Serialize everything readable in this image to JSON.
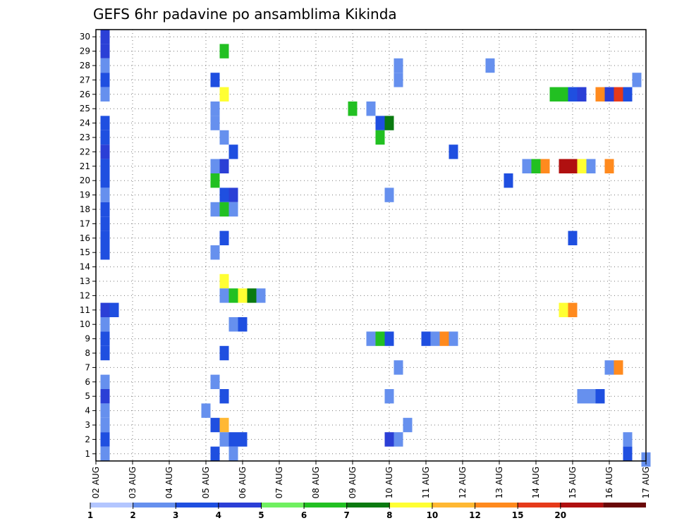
{
  "chart_data": {
    "type": "heatmap",
    "title": "GEFS 6hr padavine po ansamblima Kikinda",
    "x_tick_labels": [
      "02 AUG",
      "03 AUG",
      "04 AUG",
      "05 AUG",
      "06 AUG",
      "07 AUG",
      "08 AUG",
      "09 AUG",
      "10 AUG",
      "11 AUG",
      "12 AUG",
      "13 AUG",
      "14 AUG",
      "15 AUG",
      "16 AUG",
      "17 AUG"
    ],
    "y_tick_labels": [
      "1",
      "2",
      "3",
      "4",
      "5",
      "6",
      "7",
      "8",
      "9",
      "10",
      "11",
      "12",
      "13",
      "14",
      "15",
      "16",
      "17",
      "18",
      "19",
      "20",
      "21",
      "22",
      "23",
      "24",
      "25",
      "26",
      "27",
      "28",
      "29",
      "30"
    ],
    "x_unit": "6-hour step from 02 AUG 00UTC",
    "xlim": [
      0,
      60
    ],
    "ylim": [
      0.5,
      30.5
    ],
    "grid": true,
    "legend_placement": "bottom",
    "color_scale": {
      "labels": [
        "1",
        "2",
        "3",
        "4",
        "5",
        "6",
        "7",
        "8",
        "10",
        "12",
        "15",
        "20"
      ],
      "colors": [
        "#b3c6ff",
        "#6690ee",
        "#1f4fe0",
        "#2b3fd6",
        "#70f060",
        "#22c022",
        "#0a7a10",
        "#ffff33",
        "#ffb833",
        "#ff8a1e",
        "#e63a1a",
        "#b01010",
        "#6a0808"
      ]
    },
    "cells": [
      [
        1,
        30,
        3
      ],
      [
        1,
        29,
        3
      ],
      [
        1,
        28,
        1
      ],
      [
        1,
        27,
        2
      ],
      [
        1,
        26,
        1
      ],
      [
        1,
        24,
        2
      ],
      [
        1,
        23,
        2
      ],
      [
        1,
        22,
        3
      ],
      [
        1,
        21,
        2
      ],
      [
        1,
        20,
        2
      ],
      [
        1,
        19,
        1
      ],
      [
        1,
        18,
        2
      ],
      [
        1,
        17,
        2
      ],
      [
        1,
        16,
        2
      ],
      [
        1,
        15,
        2
      ],
      [
        1,
        11,
        3
      ],
      [
        2,
        11,
        2
      ],
      [
        1,
        10,
        1
      ],
      [
        1,
        9,
        2
      ],
      [
        1,
        8,
        2
      ],
      [
        1,
        6,
        1
      ],
      [
        1,
        5,
        3
      ],
      [
        1,
        4,
        1
      ],
      [
        1,
        3,
        1
      ],
      [
        1,
        2,
        2
      ],
      [
        1,
        1,
        1
      ],
      [
        14,
        29,
        5
      ],
      [
        14,
        26,
        7
      ],
      [
        13,
        27,
        2
      ],
      [
        13,
        25,
        1
      ],
      [
        13,
        24,
        1
      ],
      [
        14,
        23,
        1
      ],
      [
        15,
        22,
        2
      ],
      [
        13,
        21,
        1
      ],
      [
        14,
        21,
        3
      ],
      [
        13,
        20,
        5
      ],
      [
        14,
        19,
        2
      ],
      [
        15,
        19,
        3
      ],
      [
        13,
        18,
        1
      ],
      [
        14,
        18,
        5
      ],
      [
        15,
        18,
        1
      ],
      [
        14,
        16,
        2
      ],
      [
        13,
        15,
        1
      ],
      [
        14,
        13,
        7
      ],
      [
        14,
        12,
        1
      ],
      [
        15,
        12,
        5
      ],
      [
        16,
        12,
        7
      ],
      [
        17,
        12,
        6
      ],
      [
        18,
        12,
        1
      ],
      [
        15,
        10,
        1
      ],
      [
        16,
        10,
        2
      ],
      [
        14,
        8,
        2
      ],
      [
        13,
        6,
        1
      ],
      [
        14,
        5,
        2
      ],
      [
        12,
        4,
        1
      ],
      [
        13,
        3,
        2
      ],
      [
        14,
        3,
        8
      ],
      [
        14,
        2,
        1
      ],
      [
        15,
        2,
        2
      ],
      [
        16,
        2,
        2
      ],
      [
        13,
        1,
        2
      ],
      [
        15,
        1,
        1
      ],
      [
        28,
        25,
        5
      ],
      [
        30,
        25,
        1
      ],
      [
        31,
        24,
        2
      ],
      [
        32,
        24,
        6
      ],
      [
        31,
        23,
        5
      ],
      [
        33,
        28,
        1
      ],
      [
        33,
        27,
        1
      ],
      [
        32,
        19,
        1
      ],
      [
        30,
        9,
        1
      ],
      [
        31,
        9,
        5
      ],
      [
        32,
        9,
        2
      ],
      [
        33,
        7,
        1
      ],
      [
        32,
        5,
        1
      ],
      [
        34,
        3,
        1
      ],
      [
        32,
        2,
        3
      ],
      [
        33,
        2,
        1
      ],
      [
        36,
        9,
        2
      ],
      [
        37,
        9,
        1
      ],
      [
        38,
        9,
        9
      ],
      [
        39,
        9,
        1
      ],
      [
        39,
        22,
        2
      ],
      [
        43,
        28,
        1
      ],
      [
        45,
        20,
        2
      ],
      [
        47,
        21,
        1
      ],
      [
        48,
        21,
        5
      ],
      [
        49,
        21,
        9
      ],
      [
        50,
        26,
        5
      ],
      [
        51,
        26,
        5
      ],
      [
        52,
        26,
        2
      ],
      [
        53,
        26,
        3
      ],
      [
        55,
        26,
        9
      ],
      [
        56,
        26,
        3
      ],
      [
        57,
        26,
        10
      ],
      [
        58,
        26,
        2
      ],
      [
        59,
        27,
        1
      ],
      [
        51,
        21,
        11
      ],
      [
        52,
        21,
        11
      ],
      [
        53,
        21,
        7
      ],
      [
        54,
        21,
        1
      ],
      [
        56,
        21,
        9
      ],
      [
        52,
        16,
        2
      ],
      [
        51,
        11,
        7
      ],
      [
        52,
        11,
        9
      ],
      [
        56,
        7,
        1
      ],
      [
        57,
        7,
        9
      ],
      [
        53,
        5,
        1
      ],
      [
        54,
        5,
        1
      ],
      [
        55,
        5,
        2
      ],
      [
        58,
        2,
        1
      ],
      [
        58,
        1,
        2
      ],
      [
        60,
        0.6,
        1
      ]
    ]
  }
}
